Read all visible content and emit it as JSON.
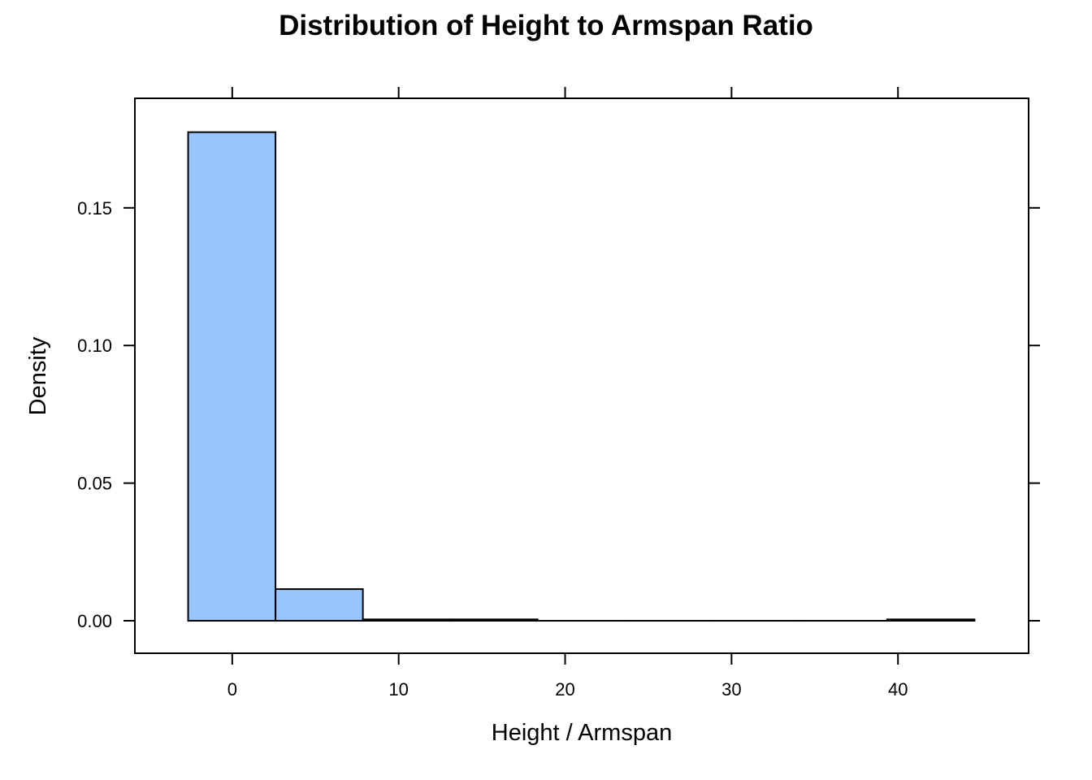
{
  "chart_data": {
    "type": "histogram",
    "title": "Distribution of Height to Armspan Ratio",
    "xlabel": "Height / Armspan",
    "ylabel": "Density",
    "xlim": [
      -5.85,
      47.85
    ],
    "ylim": [
      -0.0118,
      0.1898
    ],
    "x_ticks": [
      0,
      10,
      20,
      30,
      40
    ],
    "y_ticks": [
      0.0,
      0.05,
      0.1,
      0.15
    ],
    "y_tick_labels": [
      "0.00",
      "0.05",
      "0.10",
      "0.15"
    ],
    "bins": [
      {
        "x0": -2.65,
        "x1": 2.6,
        "density": 0.1775
      },
      {
        "x0": 2.6,
        "x1": 7.85,
        "density": 0.0115
      },
      {
        "x0": 7.85,
        "x1": 13.1,
        "density": 0.0005
      },
      {
        "x0": 13.1,
        "x1": 18.35,
        "density": 0.0005
      },
      {
        "x0": 18.35,
        "x1": 23.6,
        "density": 0.0
      },
      {
        "x0": 23.6,
        "x1": 28.85,
        "density": 0.0
      },
      {
        "x0": 28.85,
        "x1": 34.1,
        "density": 0.0
      },
      {
        "x0": 34.1,
        "x1": 39.35,
        "density": 0.0
      },
      {
        "x0": 39.35,
        "x1": 44.6,
        "density": 0.0005
      }
    ],
    "colors": {
      "fill": "#99c5ff",
      "stroke": "#000000"
    },
    "grid": false,
    "legend": "none"
  }
}
